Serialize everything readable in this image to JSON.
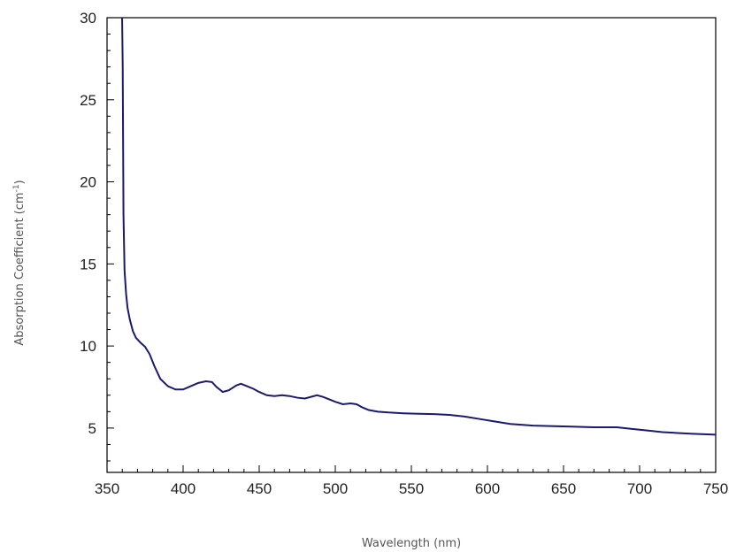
{
  "chart_data": {
    "type": "line",
    "title": "",
    "xlabel": "Wavelength (nm)",
    "ylabel_main": "Absorption Coefficient (cm",
    "ylabel_sup": "-1",
    "ylabel_close": ")",
    "xlim": [
      350,
      750
    ],
    "ylim": [
      2.3,
      30
    ],
    "x_ticks": [
      350,
      400,
      450,
      500,
      550,
      600,
      650,
      700,
      750
    ],
    "y_ticks": [
      5,
      10,
      15,
      20,
      25,
      30
    ],
    "x_tick_labels": [
      "350",
      "400",
      "450",
      "500",
      "550",
      "600",
      "650",
      "700",
      "750"
    ],
    "y_tick_labels": [
      "5",
      "10",
      "15",
      "20",
      "25",
      "30"
    ],
    "grid": false,
    "series": [
      {
        "color": "#1a1a6e",
        "x": [
          359.9,
          360.3,
          360.8,
          361.5,
          362.5,
          363.5,
          365,
          367,
          369,
          372,
          375,
          378,
          381,
          385,
          390,
          395,
          400,
          405,
          410,
          415,
          419,
          422,
          426,
          430,
          435,
          438,
          442,
          446,
          450,
          455,
          460,
          465,
          470,
          475,
          480,
          484,
          488,
          492,
          496,
          500,
          505,
          510,
          514,
          518,
          522,
          528,
          535,
          545,
          555,
          565,
          575,
          585,
          595,
          605,
          615,
          630,
          650,
          670,
          685,
          695,
          705,
          715,
          725,
          735,
          750
        ],
        "y": [
          30,
          27,
          18,
          14.6,
          13.2,
          12.3,
          11.6,
          10.9,
          10.5,
          10.2,
          9.95,
          9.5,
          8.8,
          8.0,
          7.55,
          7.35,
          7.35,
          7.55,
          7.75,
          7.85,
          7.8,
          7.5,
          7.2,
          7.3,
          7.6,
          7.7,
          7.55,
          7.4,
          7.2,
          7.0,
          6.95,
          7.0,
          6.95,
          6.85,
          6.8,
          6.9,
          7.0,
          6.9,
          6.75,
          6.6,
          6.45,
          6.5,
          6.45,
          6.25,
          6.1,
          6.0,
          5.95,
          5.9,
          5.87,
          5.85,
          5.8,
          5.7,
          5.55,
          5.4,
          5.25,
          5.15,
          5.1,
          5.05,
          5.05,
          4.95,
          4.85,
          4.75,
          4.7,
          4.65,
          4.6
        ]
      }
    ]
  }
}
